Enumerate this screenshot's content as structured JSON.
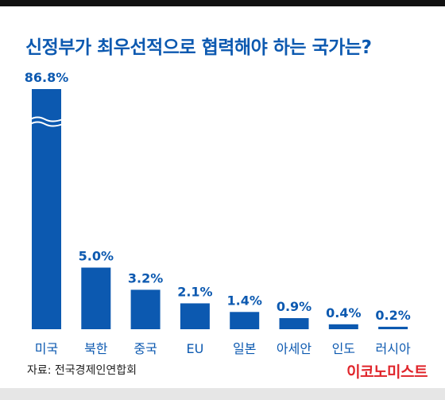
{
  "title": "신정부가 최우선적으로 협력해야 하는 국가는?",
  "source": "자료: 전국경제인연합회",
  "logo_text": "이코노미스트",
  "colors": {
    "bar": "#0c59b0",
    "title": "#0c59b0",
    "logo": "#e0252b"
  },
  "chart_data": {
    "type": "bar",
    "categories": [
      "미국",
      "북한",
      "중국",
      "EU",
      "일본",
      "아세안",
      "인도",
      "러시아"
    ],
    "values": [
      86.8,
      5.0,
      3.2,
      2.1,
      1.4,
      0.9,
      0.4,
      0.2
    ],
    "value_labels": [
      "86.8%",
      "5.0%",
      "3.2%",
      "2.1%",
      "1.4%",
      "0.9%",
      "0.4%",
      "0.2%"
    ],
    "axis_break": true,
    "title": "신정부가 최우선적으로 협력해야 하는 국가는?",
    "xlabel": "",
    "ylabel": ""
  }
}
